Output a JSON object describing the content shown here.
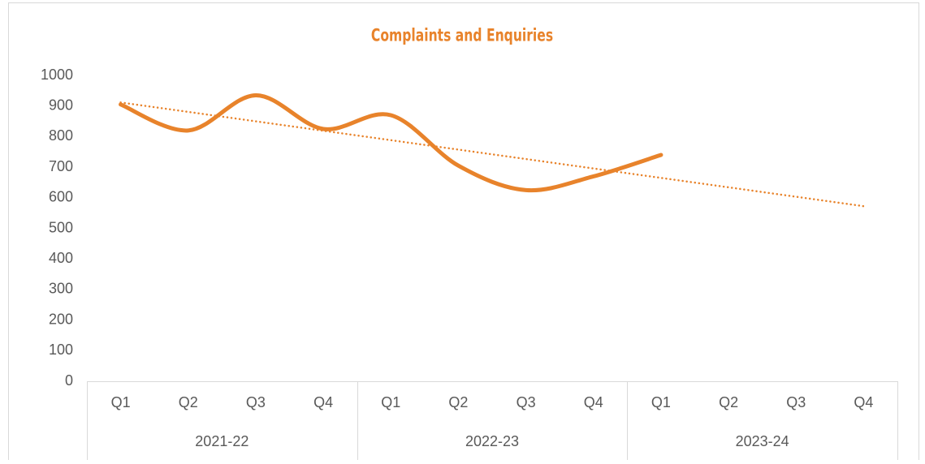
{
  "chart_data": {
    "type": "line",
    "title": "Complaints and Enquiries",
    "categories": [
      "Q1",
      "Q2",
      "Q3",
      "Q4",
      "Q1",
      "Q2",
      "Q3",
      "Q4",
      "Q1",
      "Q2",
      "Q3",
      "Q4"
    ],
    "category_groups": [
      "2021-22",
      "2022-23",
      "2023-24"
    ],
    "series": [
      {
        "color": "#e8832b",
        "values": [
          905,
          820,
          935,
          825,
          870,
          705,
          625,
          670,
          740,
          null,
          null,
          null
        ],
        "trendline": "linear"
      }
    ],
    "ylim": [
      0,
      1000
    ],
    "yticks": [
      0,
      100,
      200,
      300,
      400,
      500,
      600,
      700,
      800,
      900,
      1000
    ],
    "grid": false,
    "smooth": true
  }
}
